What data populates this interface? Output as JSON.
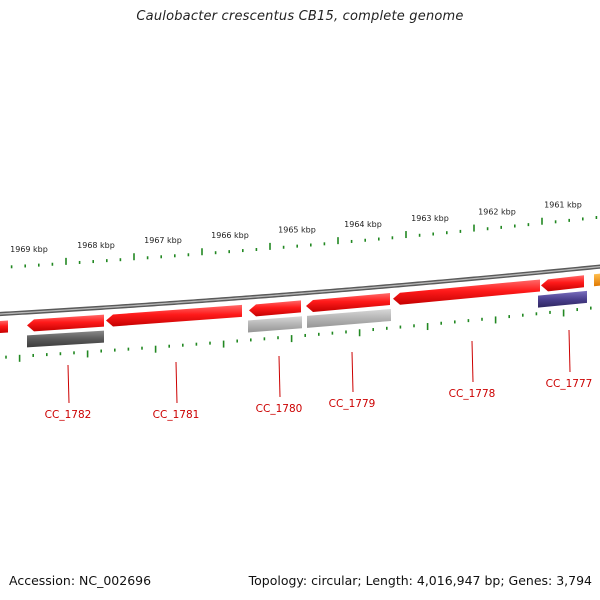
{
  "title": "Caulobacter crescentus CB15, complete genome",
  "footer": {
    "accession": "Accession: NC_002696",
    "summary": "Topology: circular; Length: 4,016,947 bp; Genes: 3,794"
  },
  "ruler": {
    "unit": "kbp",
    "labels": [
      "1969 kbp",
      "1968 kbp",
      "1967 kbp",
      "1966 kbp",
      "1965 kbp",
      "1964 kbp",
      "1963 kbp",
      "1962 kbp",
      "1961 kbp"
    ]
  },
  "genes": [
    {
      "label": "CC_1782"
    },
    {
      "label": "CC_1781"
    },
    {
      "label": "CC_1780"
    },
    {
      "label": "CC_1779"
    },
    {
      "label": "CC_1778"
    },
    {
      "label": "CC_1777"
    }
  ],
  "colors": {
    "cds": "#ee0000",
    "gene_label": "#cc0000",
    "tick": "#228822",
    "backbone": "#888888",
    "track_dark": "#555555",
    "track_light": "#aaaaaa",
    "track_purple": "#4a3f8e",
    "track_orange": "#f39200"
  }
}
